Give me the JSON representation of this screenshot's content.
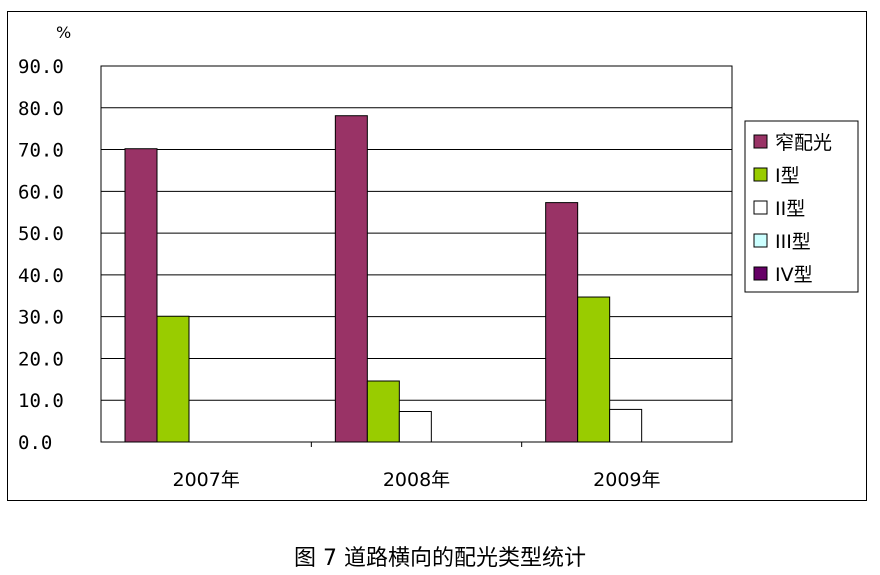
{
  "caption": "图 7 道路横向的配光类型统计",
  "chart_data": {
    "type": "bar",
    "title": "",
    "ylabel": "%",
    "xlabel": "",
    "ylim": [
      0,
      90
    ],
    "yticks": [
      "0.0",
      "10.0",
      "20.0",
      "30.0",
      "40.0",
      "50.0",
      "60.0",
      "70.0",
      "80.0",
      "90.0"
    ],
    "ytick_values": [
      0,
      10,
      20,
      30,
      40,
      50,
      60,
      70,
      80,
      90
    ],
    "grid": true,
    "legend_position": "right",
    "categories": [
      "2007年",
      "2008年",
      "2009年"
    ],
    "series": [
      {
        "name": "窄配光",
        "color": "#993366",
        "values": [
          70.2,
          78.1,
          57.3
        ]
      },
      {
        "name": "I型",
        "color": "#99CC00",
        "values": [
          30.1,
          14.6,
          34.7
        ]
      },
      {
        "name": "II型",
        "color": "#FFFFFF",
        "values": [
          0,
          7.3,
          7.8
        ]
      },
      {
        "name": "III型",
        "color": "#CCFFFF",
        "values": [
          0,
          0,
          0
        ]
      },
      {
        "name": "IV型",
        "color": "#660066",
        "values": [
          0,
          0,
          0
        ]
      }
    ]
  }
}
